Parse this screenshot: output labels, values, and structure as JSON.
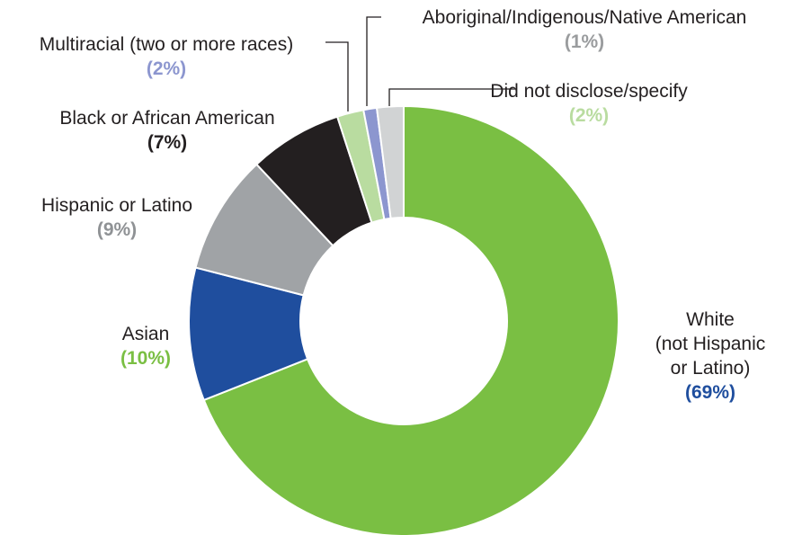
{
  "chart_data": {
    "type": "pie",
    "variant": "donut",
    "title": "",
    "slices": [
      {
        "name": "White (not Hispanic or Latino)",
        "lines": [
          "White",
          "(not Hispanic",
          "or Latino)"
        ],
        "value": 69,
        "pct_label": "(69%)",
        "color": "#7ABF43",
        "label_color": "#1F4E9E"
      },
      {
        "name": "Asian",
        "lines": [
          "Asian"
        ],
        "value": 10,
        "pct_label": "(10%)",
        "color": "#1F4E9E",
        "label_color": "#7ABF43"
      },
      {
        "name": "Hispanic or Latino",
        "lines": [
          "Hispanic or Latino"
        ],
        "value": 9,
        "pct_label": "(9%)",
        "color": "#A0A3A6",
        "label_color": "#8F9295"
      },
      {
        "name": "Black or African American",
        "lines": [
          "Black or African American"
        ],
        "value": 7,
        "pct_label": "(7%)",
        "color": "#231F20",
        "label_color": "#231F20"
      },
      {
        "name": "Multiracial (two or more races)",
        "lines": [
          "Multiracial (two or more races)"
        ],
        "value": 2,
        "pct_label": "(2%)",
        "color": "#B9DCA0",
        "label_color": "#8C96CF"
      },
      {
        "name": "Aboriginal/Indigenous/Native American",
        "lines": [
          "Aboriginal/Indigenous/Native American"
        ],
        "value": 1,
        "pct_label": "(1%)",
        "color": "#8C96CF",
        "label_color": "#9A9C9E"
      },
      {
        "name": "Did not disclose/specify",
        "lines": [
          "Did not disclose/specify"
        ],
        "value": 2,
        "pct_label": "(2%)",
        "color": "#D1D3D4",
        "label_color": "#B9DCA0"
      }
    ]
  }
}
